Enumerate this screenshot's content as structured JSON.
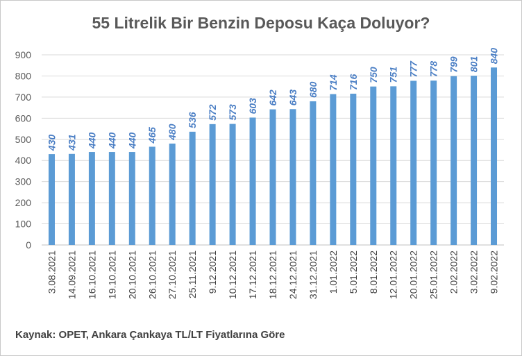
{
  "chart_data": {
    "type": "bar",
    "title": "55 Litrelik Bir Benzin Deposu Kaça Doluyor?",
    "source": "Kaynak: OPET, Ankara Çankaya TL/LT Fiyatlarına Göre",
    "categories": [
      "3.08.2021",
      "14.09.2021",
      "16.10.2021",
      "19.10.2021",
      "20.10.2021",
      "26.10.2021",
      "27.10.2021",
      "25.11.2021",
      "9.12.2021",
      "10.12.2021",
      "17.12.2021",
      "18.12.2021",
      "24.12.2021",
      "31.12.2021",
      "1.01.2022",
      "5.01.2022",
      "8.01.2022",
      "12.01.2022",
      "20.01.2022",
      "25.01.2022",
      "2.02.2022",
      "3.02.2022",
      "9.02.2022"
    ],
    "values": [
      430,
      431,
      440,
      440,
      440,
      465,
      480,
      536,
      572,
      573,
      603,
      642,
      643,
      680,
      714,
      716,
      750,
      751,
      777,
      778,
      799,
      801,
      840
    ],
    "yticks": [
      0,
      100,
      200,
      300,
      400,
      500,
      600,
      700,
      800,
      900
    ],
    "ylim": [
      0,
      900
    ],
    "xlabel": "",
    "ylabel": "",
    "grid": true,
    "bar_color": "#5b9bd5",
    "label_color": "#4a7ec4"
  }
}
